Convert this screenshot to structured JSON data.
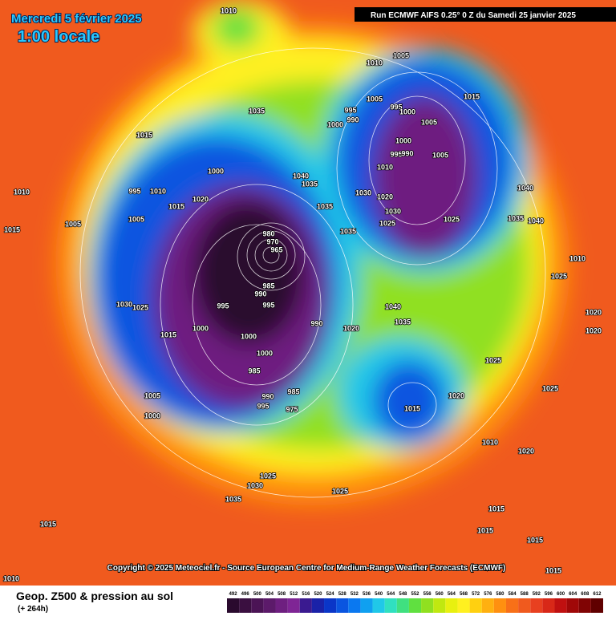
{
  "header": {
    "date": "Mercredi 5 février 2025",
    "time": "1:00 locale",
    "run": "Run ECMWF AIFS 0.25° 0 Z du Samedi 25 janvier 2025"
  },
  "copyright": "Copyright © 2025 Meteociel.fr - Source European Centre for Medium-Range Weather Forecasts (ECMWF)",
  "footer": {
    "title": "Geop. Z500 & pression au sol",
    "lead": "(+ 264h)"
  },
  "isobar_labels": [
    1010,
    1005,
    1010,
    1005,
    995,
    995,
    1000,
    990,
    1000,
    1015,
    1005,
    1035,
    1015,
    1000,
    995,
    990,
    1005,
    1010,
    1000,
    1040,
    1035,
    995,
    1010,
    1020,
    1030,
    1020,
    1035,
    1030,
    1025,
    1025,
    1015,
    1005,
    1035,
    980,
    970,
    965,
    985,
    990,
    995,
    995,
    1030,
    1025,
    990,
    1020,
    1040,
    1035,
    1000,
    1000,
    1015,
    1000,
    985,
    985,
    990,
    995,
    975,
    1015,
    1020,
    1005,
    1000,
    1025,
    1025,
    1010,
    1020,
    1025,
    1030,
    1035,
    1025,
    1015,
    1015,
    1015,
    1015,
    1010,
    1015,
    1010,
    1020,
    1020,
    1040,
    1035,
    1040,
    1025,
    1015,
    1010,
    1005
  ],
  "legend": [
    {
      "value": 492,
      "color": "#2a0a2e"
    },
    {
      "value": 496,
      "color": "#3a0f40"
    },
    {
      "value": 500,
      "color": "#4b1455"
    },
    {
      "value": 504,
      "color": "#5c1a6a"
    },
    {
      "value": 508,
      "color": "#6e1f80"
    },
    {
      "value": 512,
      "color": "#7f2595"
    },
    {
      "value": 516,
      "color": "#3a1a90"
    },
    {
      "value": 520,
      "color": "#1a22a8"
    },
    {
      "value": 524,
      "color": "#0a36c8"
    },
    {
      "value": 528,
      "color": "#0a55e0"
    },
    {
      "value": 532,
      "color": "#0a78f0"
    },
    {
      "value": 536,
      "color": "#10a0f0"
    },
    {
      "value": 540,
      "color": "#20c8e8"
    },
    {
      "value": 544,
      "color": "#30e0c0"
    },
    {
      "value": 548,
      "color": "#40e080"
    },
    {
      "value": 552,
      "color": "#60e040"
    },
    {
      "value": 556,
      "color": "#90e020"
    },
    {
      "value": 560,
      "color": "#c0e810"
    },
    {
      "value": 564,
      "color": "#e8f010"
    },
    {
      "value": 568,
      "color": "#fff020"
    },
    {
      "value": 572,
      "color": "#ffd010"
    },
    {
      "value": 576,
      "color": "#ffb010"
    },
    {
      "value": 580,
      "color": "#ff9010"
    },
    {
      "value": 584,
      "color": "#f87018"
    },
    {
      "value": 588,
      "color": "#f05a1e"
    },
    {
      "value": 592,
      "color": "#e84020"
    },
    {
      "value": 596,
      "color": "#d82818"
    },
    {
      "value": 600,
      "color": "#c01010"
    },
    {
      "value": 604,
      "color": "#a00808"
    },
    {
      "value": 608,
      "color": "#800404"
    },
    {
      "value": 612,
      "color": "#600000"
    }
  ]
}
